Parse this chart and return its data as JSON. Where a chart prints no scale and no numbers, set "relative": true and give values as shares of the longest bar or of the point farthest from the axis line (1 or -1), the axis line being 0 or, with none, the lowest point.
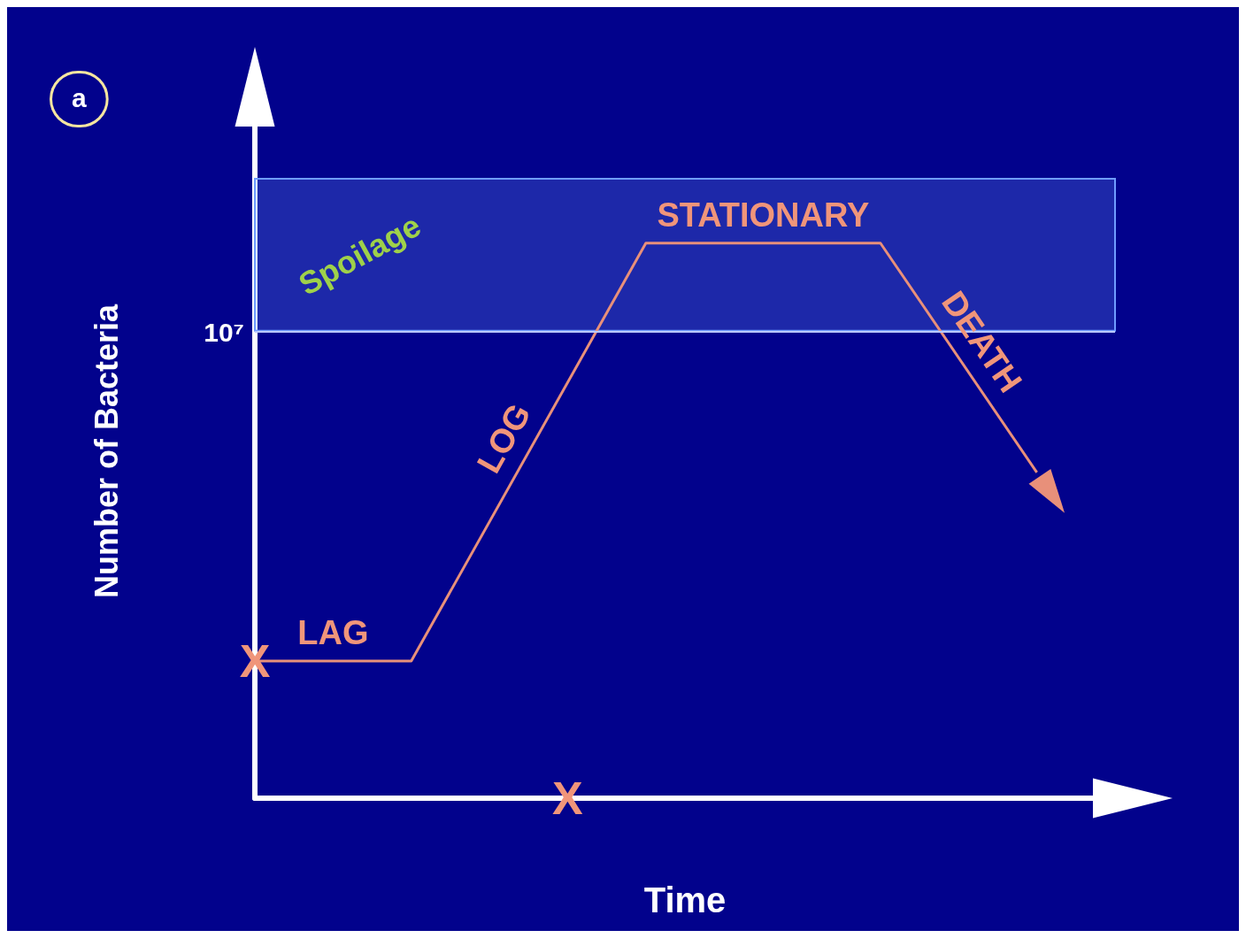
{
  "chart_data": {
    "type": "line",
    "relative": true,
    "xlabel": "Time",
    "ylabel": "Number of Bacteria",
    "categories": [
      null,
      null,
      null,
      null,
      null,
      null,
      null,
      null,
      null,
      null,
      null,
      null
    ],
    "series": [
      {
        "color": "#e8907a",
        "values": [
          0.247,
          null,
          0.247,
          null,
          null,
          1,
          null,
          null,
          1,
          null,
          0.587,
          null
        ]
      }
    ],
    "bands": [
      {
        "axis": "y",
        "from": 0.842,
        "to": 1.116,
        "label": "Spoilage",
        "color": "#6f9cff"
      }
    ],
    "ref_lines": [
      {
        "axis": "y",
        "value": 0.842,
        "label": "10⁷",
        "color": "#b8c8ff"
      }
    ],
    "annotations": [
      "a",
      "LAG",
      "LOG",
      "STATIONARY",
      "DEATH",
      "X",
      "X"
    ],
    "grid": false
  }
}
